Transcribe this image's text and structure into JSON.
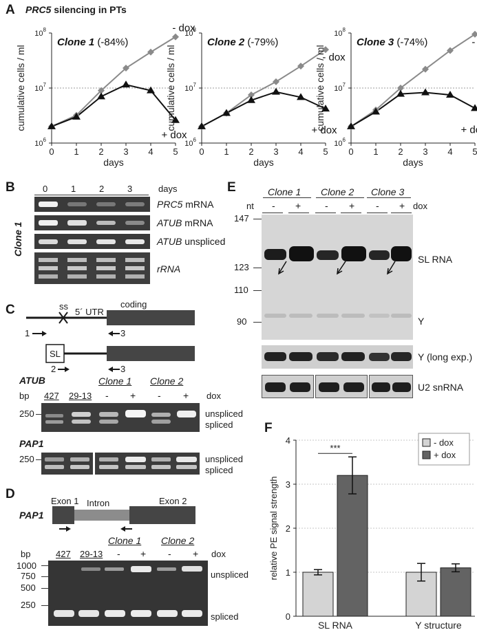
{
  "panelA": {
    "label": "A",
    "title_gene": "PRC5",
    "title_rest": " silencing in PTs",
    "charts": [
      {
        "clone": "Clone 1",
        "pct": "(-84%)",
        "chart_data": {
          "type": "line",
          "x": [
            0,
            1,
            2,
            3,
            4,
            5
          ],
          "series": [
            {
              "name": "- dox",
              "values": [
                2000000,
                3200000,
                9000000,
                23000000,
                45000000,
                85000000
              ]
            },
            {
              "name": "+ dox",
              "values": [
                2000000,
                3000000,
                7000000,
                11500000,
                9000000,
                2600000
              ]
            }
          ],
          "xlabel": "days",
          "ylabel": "cumulative cells / ml",
          "yscale": "log",
          "ylim": [
            1000000,
            100000000
          ],
          "yticks": [
            "10^6",
            "10^7",
            "10^8"
          ]
        }
      },
      {
        "clone": "Clone 2",
        "pct": "(-79%)",
        "chart_data": {
          "type": "line",
          "x": [
            0,
            1,
            2,
            3,
            4,
            5
          ],
          "series": [
            {
              "name": "- dox",
              "values": [
                2000000,
                3500000,
                7500000,
                13000000,
                25000000,
                50000000
              ]
            },
            {
              "name": "+ dox",
              "values": [
                2000000,
                3500000,
                6000000,
                8500000,
                6800000,
                4200000
              ]
            }
          ],
          "xlabel": "days",
          "ylabel": "cumulative cells / ml",
          "yscale": "log",
          "ylim": [
            1000000,
            100000000
          ],
          "yticks": [
            "10^6",
            "10^7",
            "10^8"
          ]
        }
      },
      {
        "clone": "Clone 3",
        "pct": "(-74%)",
        "chart_data": {
          "type": "line",
          "x": [
            0,
            1,
            2,
            3,
            4,
            5
          ],
          "series": [
            {
              "name": "- dox",
              "values": [
                2000000,
                4000000,
                10000000,
                22000000,
                48000000,
                95000000
              ]
            },
            {
              "name": "+ dox",
              "values": [
                2000000,
                3700000,
                7800000,
                8300000,
                7500000,
                4300000
              ]
            }
          ],
          "xlabel": "days",
          "ylabel": "cumulative cells / ml",
          "yscale": "log",
          "ylim": [
            1000000,
            100000000
          ],
          "yticks": [
            "10^6",
            "10^7",
            "10^8"
          ]
        }
      }
    ],
    "minus_dox": "- dox",
    "plus_dox": "+ dox",
    "xlabel": "days",
    "ylabel": "cumulative cells / ml",
    "ytick_base": "10",
    "ytick_exp": [
      "6",
      "7",
      "8"
    ],
    "xticks": [
      "0",
      "1",
      "2",
      "3",
      "4",
      "5"
    ]
  },
  "panelB": {
    "label": "B",
    "days": [
      "0",
      "1",
      "2",
      "3"
    ],
    "days_label": "days",
    "side_label": "Clone 1",
    "rows": [
      {
        "a": "PRC5",
        "b": " mRNA"
      },
      {
        "a": "ATUB",
        "b": " mRNA"
      },
      {
        "a": "ATUB",
        "b": " unspliced"
      },
      {
        "a": "rRNA",
        "b": ""
      }
    ]
  },
  "panelC": {
    "label": "C",
    "ss": "ss",
    "utr": "5´ UTR",
    "coding": "coding",
    "primer1": "1",
    "primer2": "2",
    "primer3a": "3",
    "primer3b": "3",
    "sl": "SL",
    "atub": "ATUB",
    "pap1": "PAP1",
    "bp": "bp",
    "lanes": [
      "427",
      "29-13"
    ],
    "clone1": "Clone 1",
    "clone2": "Clone 2",
    "minus": "-",
    "plus": "+",
    "dox": "dox",
    "size": "250",
    "unspliced": "unspliced",
    "spliced": "spliced"
  },
  "panelD": {
    "label": "D",
    "gene": "PAP1",
    "exon1": "Exon 1",
    "intron": "Intron",
    "exon2": "Exon 2",
    "bp": "bp",
    "lanes": [
      "427",
      "29-13"
    ],
    "clone1": "Clone 1",
    "clone2": "Clone 2",
    "minus": "-",
    "plus": "+",
    "dox": "dox",
    "sizes": [
      "1000",
      "750",
      "500",
      "250"
    ],
    "unspliced": "unspliced",
    "spliced": "spliced"
  },
  "panelE": {
    "label": "E",
    "clones": [
      "Clone 1",
      "Clone 2",
      "Clone 3"
    ],
    "nt": "nt",
    "minus": "-",
    "plus": "+",
    "dox": "dox",
    "markers": [
      "147",
      "123",
      "110",
      "90"
    ],
    "sl_rna": "SL RNA",
    "y": "Y",
    "y_long": "Y (long exp.)",
    "u2": "U2 snRNA"
  },
  "panelF": {
    "label": "F",
    "chart_data": {
      "type": "bar",
      "categories": [
        "SL RNA",
        "Y structure"
      ],
      "series": [
        {
          "name": "- dox",
          "values": [
            1.0,
            1.0
          ],
          "errors": [
            0.06,
            0.2
          ],
          "color": "#d4d4d4"
        },
        {
          "name": "+ dox",
          "values": [
            3.2,
            1.1
          ],
          "errors": [
            0.42,
            0.09
          ],
          "color": "#636363"
        }
      ],
      "ylabel": "relative PE signal strength",
      "ylim": [
        0,
        4
      ],
      "yticks": [
        "0",
        "1",
        "2",
        "3",
        "4"
      ],
      "significance": "***",
      "legend": "top-right",
      "grid": true
    }
  }
}
